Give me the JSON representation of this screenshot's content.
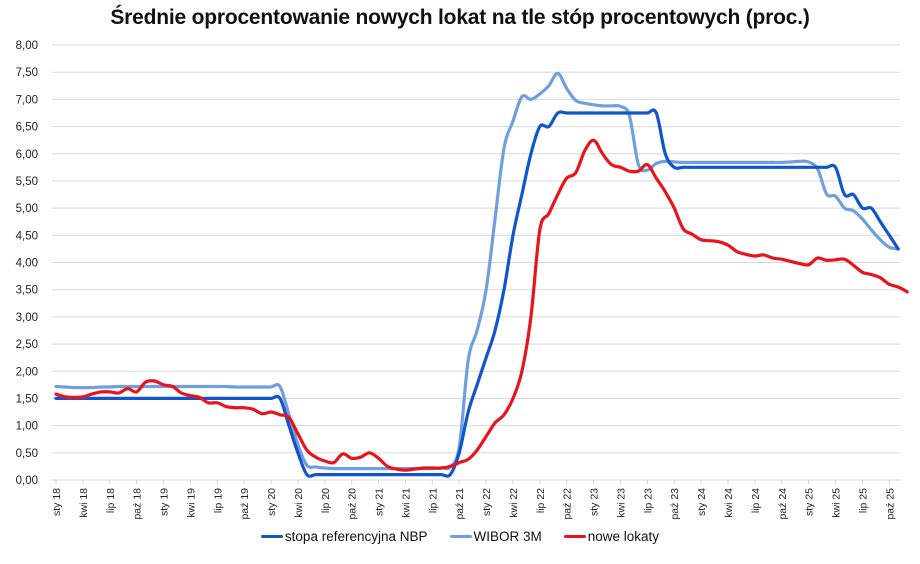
{
  "chart_data": {
    "type": "line",
    "title": "Średnie oprocentowanie nowych lokat na tle stóp procentowych (proc.)",
    "xlabel": "",
    "ylabel": "",
    "ylim": [
      0,
      8
    ],
    "yticks": [
      "0,00",
      "0,50",
      "1,00",
      "1,50",
      "2,00",
      "2,50",
      "3,00",
      "3,50",
      "4,00",
      "4,50",
      "5,00",
      "5,50",
      "6,00",
      "6,50",
      "7,00",
      "7,50",
      "8,00"
    ],
    "xticks": [
      "sty 18",
      "kwi 18",
      "lip 18",
      "paź 18",
      "sty 19",
      "kwi 19",
      "lip 19",
      "paź 19",
      "sty 20",
      "kwi 20",
      "lip 20",
      "paź 20",
      "sty 21",
      "kwi 21",
      "lip 21",
      "paź 21",
      "sty 22",
      "kwi 22",
      "lip 22",
      "paź 22",
      "sty 23",
      "kwi 23",
      "lip 23",
      "paź 23",
      "sty 24",
      "kwi 24",
      "lip 24",
      "paź 24",
      "sty 25",
      "kwi 25",
      "lip 25",
      "paź 25"
    ],
    "grid": true,
    "legend_position": "bottom",
    "x_start": "2018-01",
    "x_frequency": "monthly",
    "series": [
      {
        "name": "stopa referencyjna NBP",
        "color": "#1155CC",
        "values": [
          1.5,
          1.5,
          1.5,
          1.5,
          1.5,
          1.5,
          1.5,
          1.5,
          1.5,
          1.5,
          1.5,
          1.5,
          1.5,
          1.5,
          1.5,
          1.5,
          1.5,
          1.5,
          1.5,
          1.5,
          1.5,
          1.5,
          1.5,
          1.5,
          1.5,
          1.5,
          1.0,
          0.5,
          0.1,
          0.1,
          0.1,
          0.1,
          0.1,
          0.1,
          0.1,
          0.1,
          0.1,
          0.1,
          0.1,
          0.1,
          0.1,
          0.1,
          0.1,
          0.1,
          0.1,
          0.5,
          1.25,
          1.75,
          2.25,
          2.75,
          3.5,
          4.5,
          5.25,
          6.0,
          6.5,
          6.5,
          6.75,
          6.75,
          6.75,
          6.75,
          6.75,
          6.75,
          6.75,
          6.75,
          6.75,
          6.75,
          6.75,
          6.75,
          6.0,
          5.75,
          5.75,
          5.75,
          5.75,
          5.75,
          5.75,
          5.75,
          5.75,
          5.75,
          5.75,
          5.75,
          5.75,
          5.75,
          5.75,
          5.75,
          5.75,
          5.75,
          5.75,
          5.75,
          5.25,
          5.25,
          5.0,
          5.0,
          4.75,
          4.5,
          4.25
        ]
      },
      {
        "name": "WIBOR 3M",
        "color": "#6FA0DC",
        "values": [
          1.72,
          1.71,
          1.7,
          1.7,
          1.7,
          1.71,
          1.71,
          1.72,
          1.72,
          1.72,
          1.72,
          1.72,
          1.72,
          1.72,
          1.72,
          1.72,
          1.72,
          1.72,
          1.72,
          1.72,
          1.71,
          1.71,
          1.71,
          1.71,
          1.71,
          1.72,
          1.2,
          0.65,
          0.27,
          0.24,
          0.22,
          0.21,
          0.21,
          0.21,
          0.21,
          0.21,
          0.21,
          0.21,
          0.21,
          0.21,
          0.21,
          0.21,
          0.21,
          0.22,
          0.24,
          0.6,
          2.2,
          2.75,
          3.5,
          4.8,
          6.1,
          6.6,
          7.05,
          7.0,
          7.1,
          7.25,
          7.48,
          7.2,
          6.98,
          6.93,
          6.9,
          6.88,
          6.88,
          6.87,
          6.7,
          5.8,
          5.7,
          5.82,
          5.86,
          5.85,
          5.84,
          5.84,
          5.84,
          5.84,
          5.84,
          5.84,
          5.84,
          5.84,
          5.84,
          5.84,
          5.84,
          5.84,
          5.85,
          5.86,
          5.85,
          5.72,
          5.26,
          5.22,
          5.0,
          4.95,
          4.8,
          4.6,
          4.42,
          4.28,
          4.25
        ]
      },
      {
        "name": "nowe lokaty",
        "color": "#E8141B",
        "values": [
          1.58,
          1.53,
          1.52,
          1.53,
          1.58,
          1.62,
          1.62,
          1.6,
          1.68,
          1.62,
          1.8,
          1.82,
          1.75,
          1.72,
          1.6,
          1.55,
          1.52,
          1.42,
          1.42,
          1.35,
          1.33,
          1.33,
          1.3,
          1.22,
          1.25,
          1.2,
          1.15,
          0.85,
          0.55,
          0.42,
          0.35,
          0.32,
          0.48,
          0.4,
          0.42,
          0.5,
          0.4,
          0.25,
          0.2,
          0.18,
          0.2,
          0.22,
          0.22,
          0.22,
          0.25,
          0.32,
          0.38,
          0.55,
          0.8,
          1.05,
          1.2,
          1.5,
          2.0,
          3.0,
          4.6,
          4.9,
          5.25,
          5.55,
          5.65,
          6.05,
          6.25,
          6.0,
          5.8,
          5.75,
          5.68,
          5.68,
          5.8,
          5.55,
          5.3,
          5.0,
          4.62,
          4.52,
          4.42,
          4.4,
          4.38,
          4.32,
          4.2,
          4.15,
          4.12,
          4.14,
          4.08,
          4.06,
          4.02,
          3.98,
          3.96,
          4.08,
          4.04,
          4.05,
          4.06,
          3.95,
          3.82,
          3.78,
          3.72,
          3.6,
          3.55,
          3.46
        ]
      }
    ]
  },
  "legend": {
    "items": [
      {
        "label": "stopa referencyjna NBP",
        "color": "#1155CC"
      },
      {
        "label": "WIBOR 3M",
        "color": "#6FA0DC"
      },
      {
        "label": "nowe lokaty",
        "color": "#E8141B"
      }
    ]
  }
}
